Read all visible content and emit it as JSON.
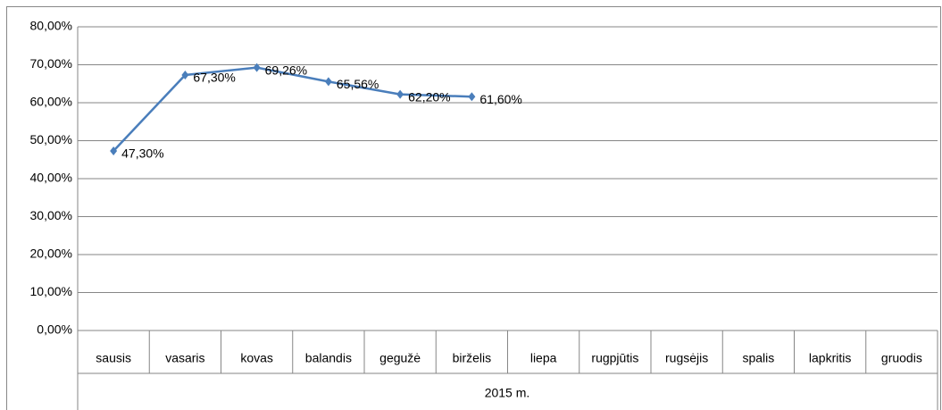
{
  "chart_data": {
    "type": "line",
    "categories": [
      "sausis",
      "vasaris",
      "kovas",
      "balandis",
      "gegužė",
      "birželis",
      "liepa",
      "rugpjūtis",
      "rugsėjis",
      "spalis",
      "lapkritis",
      "gruodis"
    ],
    "xlabel": "2015 m.",
    "series": [
      {
        "color": "#4a7ebb",
        "values": [
          47.3,
          67.3,
          69.26,
          65.56,
          62.2,
          61.6,
          null,
          null,
          null,
          null,
          null,
          null
        ],
        "value_labels": [
          "47,30%",
          "67,30%",
          "69,26%",
          "65,56%",
          "62,20%",
          "61,60%",
          null,
          null,
          null,
          null,
          null,
          null
        ]
      }
    ],
    "ylim": [
      0,
      80
    ],
    "yticks": [
      {
        "value": 0,
        "label": "0,00%"
      },
      {
        "value": 10,
        "label": "10,00%"
      },
      {
        "value": 20,
        "label": "20,00%"
      },
      {
        "value": 30,
        "label": "30,00%"
      },
      {
        "value": 40,
        "label": "40,00%"
      },
      {
        "value": 50,
        "label": "50,00%"
      },
      {
        "value": 60,
        "label": "60,00%"
      },
      {
        "value": 70,
        "label": "70,00%"
      },
      {
        "value": 80,
        "label": "80,00%"
      }
    ],
    "grid": true
  }
}
